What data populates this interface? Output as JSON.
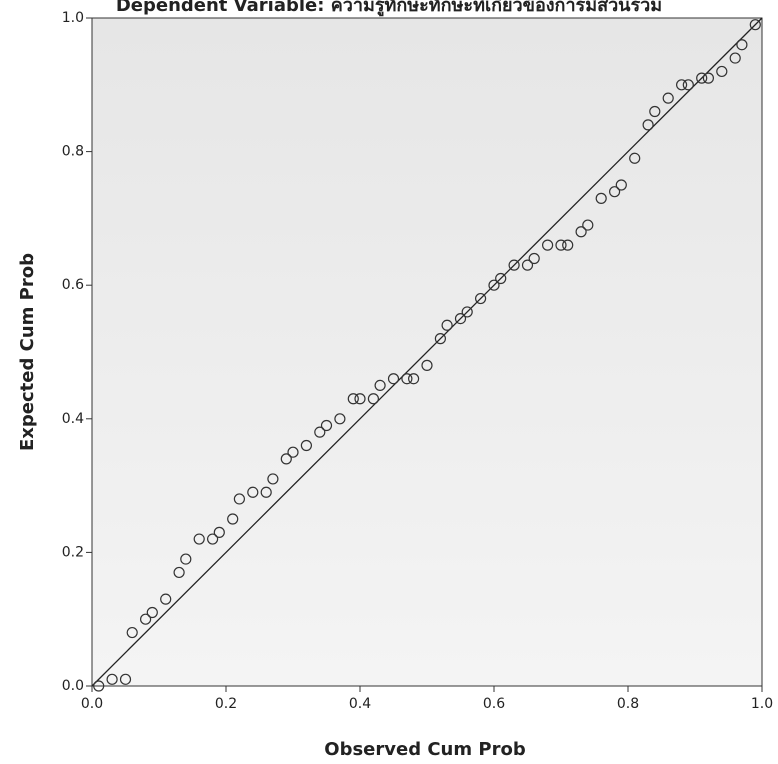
{
  "chart_data": {
    "type": "scatter",
    "title": "Dependent Variable: ความรู้ทักษะทักษะที่เกี่ยวข้องการมีส่วนร่วม",
    "x_label": "Observed Cum Prob",
    "y_label": "Expected Cum Prob",
    "color": "#333333",
    "x": [
      0.01,
      0.03,
      0.05,
      0.06,
      0.08,
      0.09,
      0.11,
      0.13,
      0.14,
      0.16,
      0.18,
      0.19,
      0.21,
      0.22,
      0.24,
      0.26,
      0.27,
      0.29,
      0.3,
      0.32,
      0.34,
      0.35,
      0.37,
      0.39,
      0.4,
      0.42,
      0.43,
      0.45,
      0.47,
      0.48,
      0.5,
      0.52,
      0.53,
      0.55,
      0.56,
      0.58,
      0.6,
      0.61,
      0.63,
      0.65,
      0.66,
      0.68,
      0.7,
      0.71,
      0.73,
      0.74,
      0.76,
      0.78,
      0.79,
      0.81,
      0.83,
      0.84,
      0.86,
      0.88,
      0.89,
      0.91,
      0.92,
      0.94,
      0.96,
      0.97,
      0.99
    ],
    "values": [
      0.0,
      0.01,
      0.01,
      0.08,
      0.1,
      0.11,
      0.13,
      0.17,
      0.19,
      0.22,
      0.22,
      0.23,
      0.25,
      0.28,
      0.29,
      0.29,
      0.31,
      0.34,
      0.35,
      0.36,
      0.38,
      0.39,
      0.4,
      0.43,
      0.43,
      0.43,
      0.45,
      0.46,
      0.46,
      0.46,
      0.48,
      0.52,
      0.54,
      0.55,
      0.56,
      0.58,
      0.6,
      0.61,
      0.63,
      0.63,
      0.64,
      0.66,
      0.66,
      0.66,
      0.68,
      0.69,
      0.73,
      0.74,
      0.75,
      0.79,
      0.84,
      0.86,
      0.88,
      0.9,
      0.9,
      0.91,
      0.91,
      0.92,
      0.94,
      0.96,
      0.99
    ],
    "xlim": [
      0,
      1
    ],
    "ylim": [
      0,
      1
    ],
    "xticks": [
      {
        "value": 0,
        "label": "0.0"
      },
      0.2,
      0.4,
      0.6,
      0.8,
      {
        "value": 1,
        "label": "1.0"
      }
    ],
    "yticks": [
      {
        "value": 0,
        "label": "0.0"
      },
      0.2,
      0.4,
      0.6,
      0.8,
      {
        "value": 1,
        "label": "1.0"
      }
    ],
    "reference_line": true
  }
}
